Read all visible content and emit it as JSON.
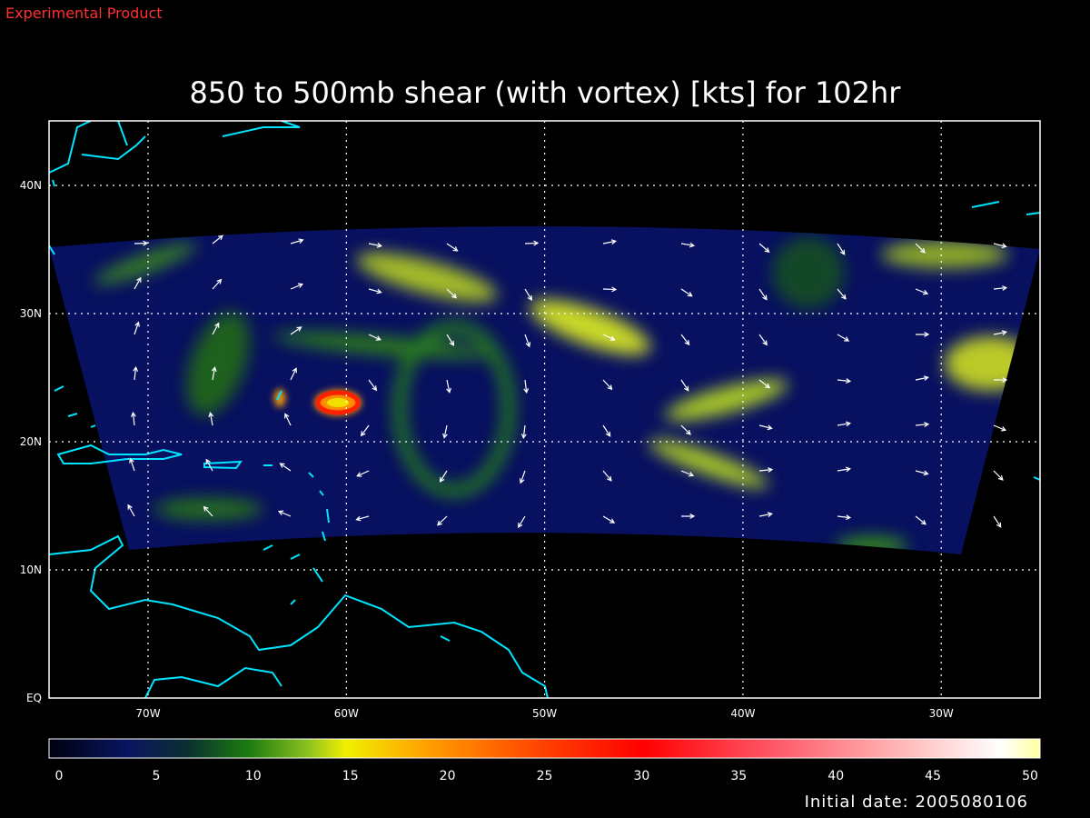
{
  "header": {
    "label": "Experimental Product"
  },
  "title": "850 to 500mb shear (with vortex) [kts] for 102hr",
  "lat_labels": [
    "40N",
    "30N",
    "20N",
    "10N",
    "EQ"
  ],
  "lon_labels": [
    "70W",
    "60W",
    "50W",
    "40W",
    "30W"
  ],
  "colorbar": {
    "ticks": [
      0,
      5,
      10,
      15,
      20,
      25,
      30,
      35,
      40,
      45,
      50
    ]
  },
  "footer": "Initial date: 2005080106"
}
